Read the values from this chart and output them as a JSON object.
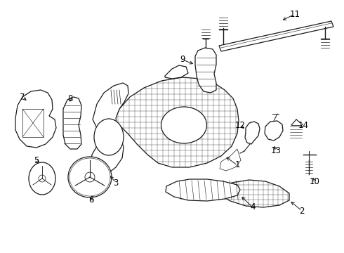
{
  "bg_color": "#ffffff",
  "line_color": "#1a1a1a",
  "fig_width": 4.9,
  "fig_height": 3.6,
  "dpi": 100,
  "label_fontsize": 8.5
}
